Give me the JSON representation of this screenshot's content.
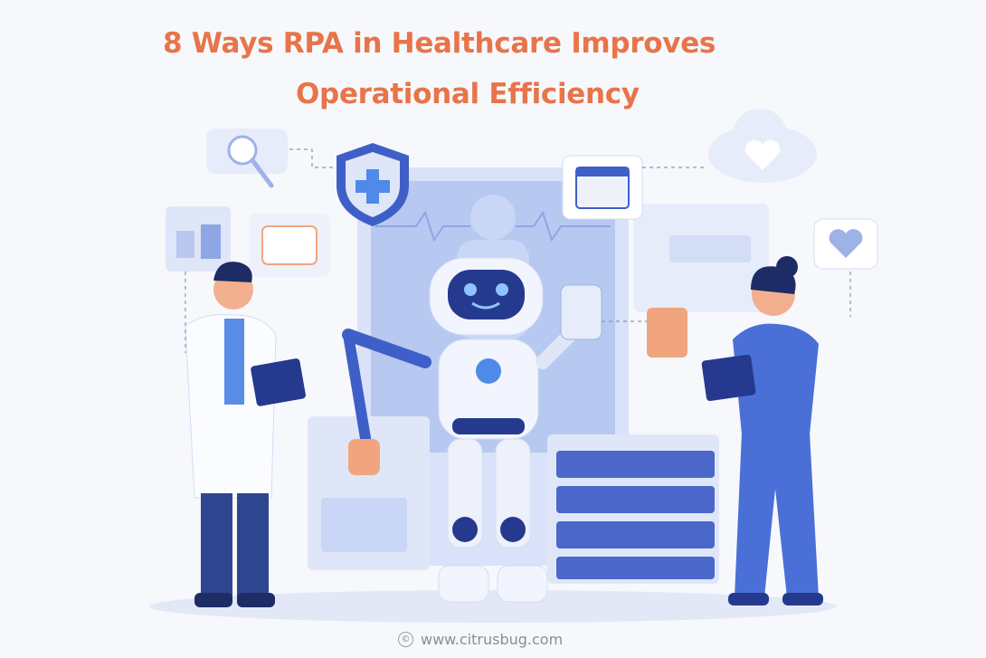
{
  "title": {
    "line1": "8 Ways RPA in Healthcare Improves",
    "line2": "Operational Efficiency"
  },
  "footer": {
    "copyright_symbol": "©",
    "website": "www.citrusbug.com"
  },
  "colors": {
    "title": "#e8744a",
    "primary_blue": "#3f5fc8",
    "light_blue": "#c9d6f5",
    "background": "#f7f8fc"
  },
  "illustration": {
    "icons": [
      "search-icon",
      "shield-plus-icon",
      "calendar-icon",
      "cloud-heart-icon",
      "heartbeat-bubble-icon",
      "checklist-icon",
      "chart-icon",
      "medical-tablet-icon"
    ],
    "figures": [
      "doctor",
      "robot",
      "nurse",
      "server-rack",
      "monitor-screen"
    ]
  }
}
